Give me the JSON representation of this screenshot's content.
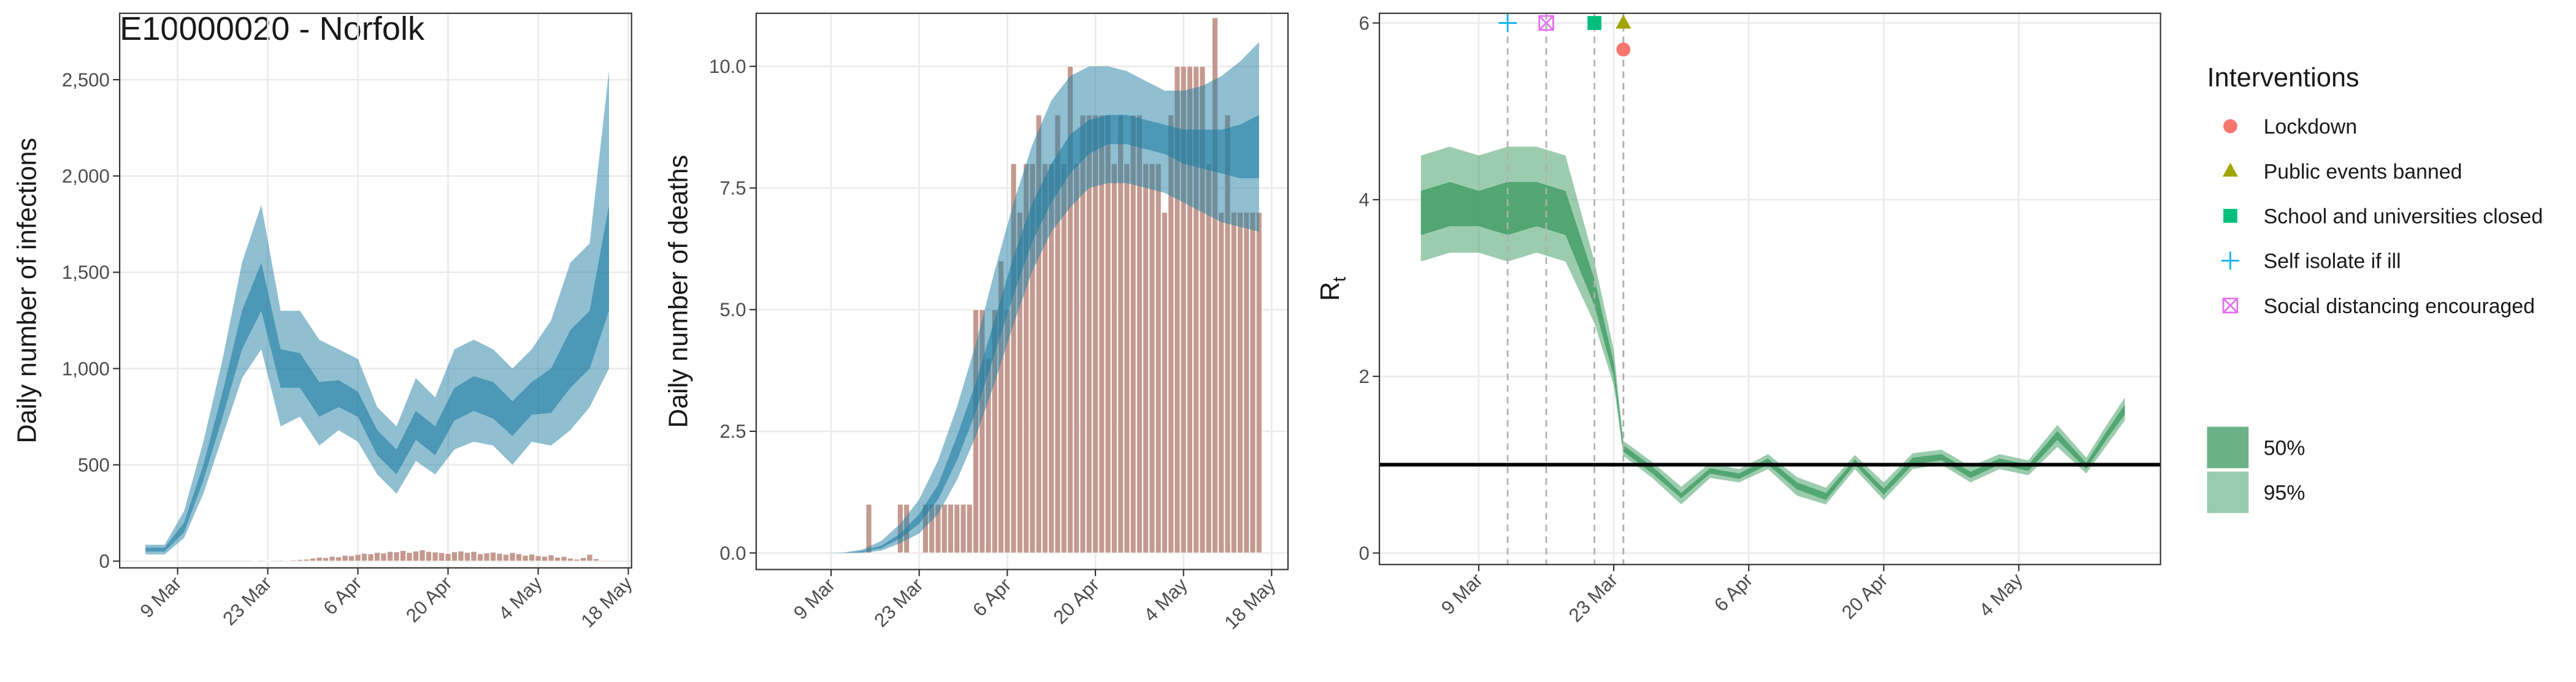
{
  "chart_data": [
    {
      "type": "ribbon",
      "title": "E10000020 - Norfolk",
      "ylabel": "Daily number of infections",
      "xlim": [
        0,
        79.5
      ],
      "xticks": [
        {
          "value": 9,
          "label": "9 Mar"
        },
        {
          "value": 23,
          "label": "23 Mar"
        },
        {
          "value": 37,
          "label": "6 Apr"
        },
        {
          "value": 51,
          "label": "20 Apr"
        },
        {
          "value": 65,
          "label": "4 May"
        },
        {
          "value": 79,
          "label": "18 May"
        }
      ],
      "ylim": [
        -35,
        2845
      ],
      "yticks": [
        0,
        500,
        {
          "value": 1000,
          "label": "1,000"
        },
        {
          "value": 1500,
          "label": "1,500"
        },
        {
          "value": 2000,
          "label": "2,000"
        },
        {
          "value": 2500,
          "label": "2,500"
        }
      ],
      "grid": true,
      "bars": {
        "color": "#c49a90",
        "x": [
          21,
          22,
          23,
          24,
          25,
          26,
          27,
          28,
          29,
          30,
          31,
          32,
          33,
          34,
          35,
          36,
          37,
          38,
          39,
          40,
          41,
          42,
          43,
          44,
          45,
          46,
          47,
          48,
          49,
          50,
          51,
          52,
          53,
          54,
          55,
          56,
          57,
          58,
          59,
          60,
          61,
          62,
          63,
          64,
          65,
          66,
          67,
          68,
          69,
          70,
          71,
          72,
          73,
          74
        ],
        "values": [
          3,
          0,
          2,
          0,
          5,
          4,
          6,
          8,
          10,
          15,
          20,
          18,
          25,
          22,
          30,
          28,
          35,
          40,
          38,
          45,
          42,
          50,
          48,
          55,
          45,
          52,
          58,
          50,
          47,
          44,
          40,
          48,
          52,
          45,
          50,
          38,
          42,
          46,
          40,
          35,
          44,
          38,
          30,
          36,
          28,
          25,
          32,
          20,
          24,
          15,
          10,
          18,
          35,
          12
        ]
      },
      "x": [
        4,
        7,
        10,
        13,
        16,
        19,
        22,
        25,
        28,
        31,
        34,
        37,
        40,
        43,
        46,
        49,
        52,
        55,
        58,
        61,
        64,
        67,
        70,
        73,
        76
      ],
      "ribbons": [
        {
          "color": "#1f7fa3",
          "alpha": 0.5,
          "lower": [
            35,
            35,
            120,
            350,
            650,
            950,
            1100,
            700,
            750,
            600,
            680,
            620,
            450,
            350,
            520,
            450,
            580,
            620,
            600,
            500,
            620,
            600,
            680,
            800,
            1000
          ],
          "upper": [
            85,
            85,
            260,
            620,
            1050,
            1550,
            1850,
            1300,
            1300,
            1150,
            1100,
            1050,
            800,
            700,
            950,
            850,
            1100,
            1150,
            1100,
            1000,
            1100,
            1250,
            1550,
            1650,
            2550
          ]
        },
        {
          "color": "#1f7fa3",
          "alpha": 0.6,
          "lower": [
            50,
            50,
            150,
            420,
            750,
            1100,
            1300,
            900,
            900,
            750,
            800,
            750,
            550,
            450,
            630,
            550,
            730,
            780,
            740,
            650,
            760,
            770,
            900,
            1000,
            1300
          ],
          "upper": [
            70,
            70,
            200,
            500,
            880,
            1300,
            1550,
            1100,
            1080,
            930,
            940,
            880,
            680,
            580,
            780,
            700,
            900,
            960,
            930,
            830,
            930,
            1000,
            1200,
            1300,
            1850
          ]
        }
      ]
    },
    {
      "type": "ribbon",
      "ylabel": "Daily number of deaths",
      "xlim": [
        -2.9,
        81.6
      ],
      "xticks": [
        {
          "value": 9,
          "label": "9 Mar"
        },
        {
          "value": 23,
          "label": "23 Mar"
        },
        {
          "value": 37,
          "label": "6 Apr"
        },
        {
          "value": 51,
          "label": "20 Apr"
        },
        {
          "value": 65,
          "label": "4 May"
        },
        {
          "value": 79,
          "label": "18 May"
        }
      ],
      "ylim": [
        -0.34,
        11.09
      ],
      "yticks": [
        {
          "value": 0,
          "label": "0.0"
        },
        2.5,
        {
          "value": 5,
          "label": "5.0"
        },
        7.5,
        {
          "value": 10,
          "label": "10.0"
        }
      ],
      "grid": true,
      "bars": {
        "color": "#c49a90",
        "x": [
          15,
          16,
          17,
          18,
          19,
          20,
          21,
          22,
          23,
          24,
          25,
          26,
          27,
          28,
          29,
          30,
          31,
          32,
          33,
          34,
          35,
          36,
          37,
          38,
          39,
          40,
          41,
          42,
          43,
          44,
          45,
          46,
          47,
          48,
          49,
          50,
          51,
          52,
          53,
          54,
          55,
          56,
          57,
          58,
          59,
          60,
          61,
          62,
          63,
          64,
          65,
          66,
          67,
          68,
          69,
          70,
          71,
          72,
          73,
          74,
          75,
          76,
          77
        ],
        "values": [
          1,
          0,
          0,
          0,
          0,
          1,
          1,
          0,
          0,
          1,
          1,
          1,
          1,
          1,
          1,
          1,
          1,
          5,
          5,
          4,
          5,
          6,
          5,
          8,
          7,
          8,
          8,
          9,
          8,
          8,
          9,
          8,
          10,
          8,
          9,
          9,
          9,
          9,
          9,
          8,
          9,
          8,
          9,
          9,
          8,
          8,
          8,
          7,
          9,
          10,
          10,
          10,
          10,
          10,
          8,
          11,
          7,
          9,
          7,
          7,
          7,
          7,
          7
        ]
      },
      "x": [
        5,
        8,
        11,
        14,
        17,
        20,
        23,
        26,
        29,
        32,
        35,
        38,
        41,
        44,
        47,
        50,
        53,
        56,
        59,
        62,
        65,
        68,
        71,
        74,
        77
      ],
      "ribbons": [
        {
          "color": "#1f7fa3",
          "alpha": 0.5,
          "lower": [
            0,
            0,
            0,
            0,
            0.05,
            0.2,
            0.4,
            0.8,
            1.5,
            2.4,
            3.5,
            4.7,
            5.8,
            6.6,
            7.1,
            7.5,
            7.6,
            7.6,
            7.5,
            7.4,
            7.2,
            7.0,
            6.8,
            6.7,
            6.6
          ],
          "upper": [
            0,
            0,
            0.01,
            0.07,
            0.25,
            0.6,
            1.1,
            1.9,
            3.0,
            4.3,
            5.8,
            7.2,
            8.4,
            9.3,
            9.8,
            10.0,
            10.0,
            9.9,
            9.7,
            9.5,
            9.5,
            9.6,
            9.8,
            10.1,
            10.5
          ]
        },
        {
          "color": "#1f7fa3",
          "alpha": 0.6,
          "lower": [
            0,
            0,
            0,
            0.02,
            0.1,
            0.3,
            0.6,
            1.1,
            1.9,
            2.9,
            4.1,
            5.3,
            6.4,
            7.2,
            7.8,
            8.2,
            8.4,
            8.4,
            8.3,
            8.2,
            8.0,
            7.9,
            7.8,
            7.7,
            7.7
          ],
          "upper": [
            0,
            0,
            0,
            0.04,
            0.15,
            0.4,
            0.8,
            1.4,
            2.4,
            3.5,
            4.8,
            6.1,
            7.2,
            8.0,
            8.6,
            8.9,
            9.0,
            9.0,
            8.9,
            8.8,
            8.7,
            8.7,
            8.7,
            8.8,
            9.0
          ]
        }
      ]
    },
    {
      "type": "ribbon",
      "ylabel": {
        "main": "R",
        "sub": "t"
      },
      "xlim": [
        -1.3,
        79.7
      ],
      "xticks": [
        {
          "value": 9,
          "label": "9 Mar"
        },
        {
          "value": 23,
          "label": "23 Mar"
        },
        {
          "value": 37,
          "label": "6 Apr"
        },
        {
          "value": 51,
          "label": "20 Apr"
        },
        {
          "value": 65,
          "label": "4 May"
        }
      ],
      "ylim": [
        -0.13,
        6.11
      ],
      "yticks": [
        0,
        2,
        4,
        6
      ],
      "grid": true,
      "reference_line": 1,
      "x": [
        3,
        6,
        9,
        12,
        15,
        18,
        21,
        23,
        24,
        27,
        30,
        33,
        36,
        39,
        42,
        45,
        48,
        51,
        54,
        57,
        60,
        63,
        66,
        69,
        72,
        74,
        76
      ],
      "ribbons": [
        {
          "name": "95%",
          "color": "#3a9a5e",
          "alpha": 0.5,
          "lower": [
            3.3,
            3.4,
            3.4,
            3.3,
            3.4,
            3.3,
            2.6,
            1.9,
            1.1,
            0.85,
            0.55,
            0.85,
            0.8,
            0.95,
            0.65,
            0.55,
            0.95,
            0.6,
            0.95,
            1.0,
            0.8,
            0.95,
            0.88,
            1.2,
            0.9,
            1.2,
            1.5
          ],
          "upper": [
            4.5,
            4.6,
            4.5,
            4.6,
            4.6,
            4.5,
            3.3,
            2.3,
            1.27,
            1.03,
            0.75,
            1.02,
            0.95,
            1.12,
            0.86,
            0.74,
            1.11,
            0.8,
            1.13,
            1.17,
            0.98,
            1.12,
            1.05,
            1.45,
            1.08,
            1.43,
            1.76
          ]
        },
        {
          "name": "50%",
          "color": "#3a9a5e",
          "alpha": 0.75,
          "lower": [
            3.6,
            3.7,
            3.7,
            3.6,
            3.7,
            3.6,
            2.8,
            2.0,
            1.15,
            0.9,
            0.62,
            0.9,
            0.84,
            1.0,
            0.72,
            0.6,
            1.0,
            0.66,
            1.0,
            1.05,
            0.85,
            1.0,
            0.93,
            1.28,
            0.95,
            1.27,
            1.57
          ],
          "upper": [
            4.1,
            4.2,
            4.1,
            4.2,
            4.2,
            4.1,
            3.1,
            2.15,
            1.22,
            0.98,
            0.68,
            0.96,
            0.9,
            1.07,
            0.8,
            0.68,
            1.06,
            0.73,
            1.08,
            1.12,
            0.92,
            1.07,
            1.0,
            1.38,
            1.02,
            1.36,
            1.68
          ]
        }
      ],
      "interventions": {
        "title": "Interventions",
        "items": [
          {
            "name": "Lockdown",
            "x": 24,
            "y": 5.7,
            "color": "#F8766D",
            "shape": "circle"
          },
          {
            "name": "Public events banned",
            "x": 24,
            "y": 6,
            "color": "#A3A500",
            "shape": "triangle"
          },
          {
            "name": "School and universities closed",
            "x": 21,
            "y": 6,
            "color": "#00BF7D",
            "shape": "square"
          },
          {
            "name": "Self isolate if ill",
            "x": 12,
            "y": 6,
            "color": "#00B0F6",
            "shape": "plus"
          },
          {
            "name": "Social distancing encouraged",
            "x": 16,
            "y": 6,
            "color": "#E76BF3",
            "shape": "boxx"
          }
        ]
      }
    }
  ]
}
